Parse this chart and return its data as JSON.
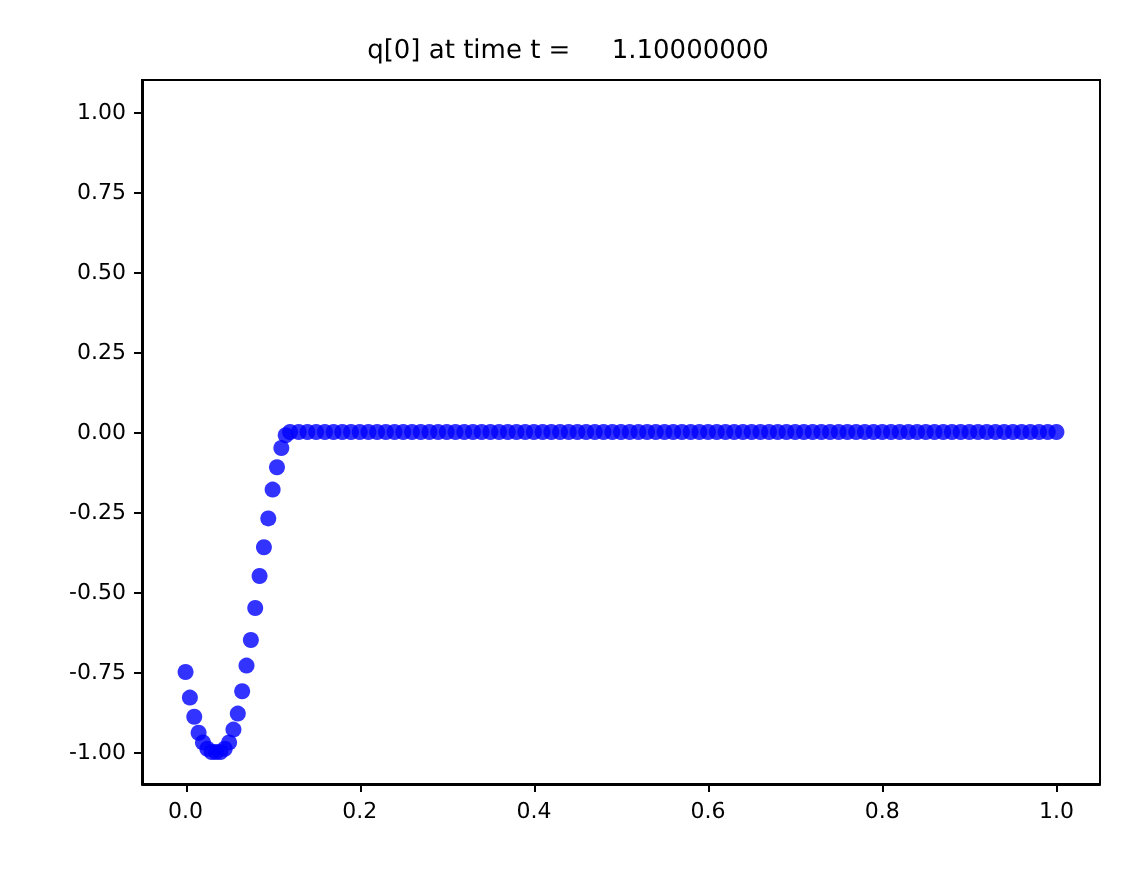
{
  "chart_data": {
    "type": "scatter",
    "title": "q[0] at time t =     1.10000000",
    "marker": "circle",
    "grid": false,
    "x": [
      0,
      0.005,
      0.01,
      0.015,
      0.02,
      0.025,
      0.03,
      0.035,
      0.04,
      0.045,
      0.05,
      0.055,
      0.06,
      0.065,
      0.07,
      0.075,
      0.08,
      0.085,
      0.09,
      0.095,
      0.1,
      0.105,
      0.11,
      0.115,
      0.12,
      0.13,
      0.14,
      0.15,
      0.16,
      0.17,
      0.18,
      0.19,
      0.2,
      0.21,
      0.22,
      0.23,
      0.24,
      0.25,
      0.26,
      0.27,
      0.28,
      0.29,
      0.3,
      0.31,
      0.32,
      0.33,
      0.34,
      0.35,
      0.36,
      0.37,
      0.38,
      0.39,
      0.4,
      0.41,
      0.42,
      0.43,
      0.44,
      0.45,
      0.46,
      0.47,
      0.48,
      0.49,
      0.5,
      0.51,
      0.52,
      0.53,
      0.54,
      0.55,
      0.56,
      0.57,
      0.58,
      0.59,
      0.6,
      0.61,
      0.62,
      0.63,
      0.64,
      0.65,
      0.66,
      0.67,
      0.68,
      0.69,
      0.7,
      0.71,
      0.72,
      0.73,
      0.74,
      0.75,
      0.76,
      0.77,
      0.78,
      0.79,
      0.8,
      0.81,
      0.82,
      0.83,
      0.84,
      0.85,
      0.86,
      0.87,
      0.88,
      0.89,
      0.9,
      0.91,
      0.92,
      0.93,
      0.94,
      0.95,
      0.96,
      0.97,
      0.98,
      0.99,
      1.0
    ],
    "series": [
      {
        "color": "#0000ff",
        "values": [
          -0.75,
          -0.83,
          -0.89,
          -0.94,
          -0.97,
          -0.99,
          -1.0,
          -1.0,
          -1.0,
          -0.99,
          -0.97,
          -0.93,
          -0.88,
          -0.81,
          -0.73,
          -0.65,
          -0.55,
          -0.45,
          -0.36,
          -0.27,
          -0.18,
          -0.11,
          -0.05,
          -0.01,
          0,
          0,
          0,
          0,
          0,
          0,
          0,
          0,
          0,
          0,
          0,
          0,
          0,
          0,
          0,
          0,
          0,
          0,
          0,
          0,
          0,
          0,
          0,
          0,
          0,
          0,
          0,
          0,
          0,
          0,
          0,
          0,
          0,
          0,
          0,
          0,
          0,
          0,
          0,
          0,
          0,
          0,
          0,
          0,
          0,
          0,
          0,
          0,
          0,
          0,
          0,
          0,
          0,
          0,
          0,
          0,
          0,
          0,
          0,
          0,
          0,
          0,
          0,
          0,
          0,
          0,
          0,
          0,
          0,
          0,
          0,
          0,
          0,
          0,
          0,
          0,
          0,
          0,
          0,
          0,
          0,
          0,
          0,
          0,
          0,
          0,
          0,
          0,
          0
        ]
      }
    ],
    "xlim": [
      -0.05,
      1.05
    ],
    "xticks": [
      {
        "value": 0,
        "label": "0.0"
      },
      {
        "value": 0.2,
        "label": "0.2"
      },
      {
        "value": 0.4,
        "label": "0.4"
      },
      {
        "value": 0.6,
        "label": "0.6"
      },
      {
        "value": 0.8,
        "label": "0.8"
      },
      {
        "value": 1,
        "label": "1.0"
      }
    ],
    "ylim": [
      -1.1,
      1.1
    ],
    "yticks": [
      {
        "value": -1,
        "label": "-1.00"
      },
      {
        "value": -0.75,
        "label": "-0.75"
      },
      {
        "value": -0.5,
        "label": "-0.50"
      },
      {
        "value": -0.25,
        "label": "-0.25"
      },
      {
        "value": 0,
        "label": "0.00"
      },
      {
        "value": 0.25,
        "label": "0.25"
      },
      {
        "value": 0.5,
        "label": "0.50"
      },
      {
        "value": 0.75,
        "label": "0.75"
      },
      {
        "value": 1,
        "label": "1.00"
      }
    ]
  }
}
